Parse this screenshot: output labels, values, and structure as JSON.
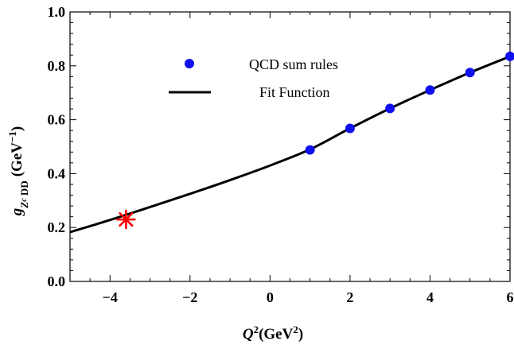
{
  "chart_data": {
    "type": "scatter",
    "xlabel": {
      "base": "Q",
      "sup": "2",
      "unit_open": "(GeV",
      "unit_sup": "2",
      "unit_close": ")"
    },
    "ylabel": {
      "base": "g",
      "sub1": "Z",
      "sub1_sub": "c",
      "sub2": " DD",
      "unit_open": "(GeV",
      "unit_sup": "−1",
      "unit_close": ")"
    },
    "xlim": [
      -5,
      6
    ],
    "ylim": [
      0.0,
      1.0
    ],
    "x_ticks": [
      {
        "value": -4,
        "label": "−4"
      },
      {
        "value": -2,
        "label": "−2"
      },
      {
        "value": 0,
        "label": "0"
      },
      {
        "value": 2,
        "label": "2"
      },
      {
        "value": 4,
        "label": "4"
      },
      {
        "value": 6,
        "label": "6"
      }
    ],
    "y_ticks": [
      {
        "value": 0.0,
        "label": "0.0"
      },
      {
        "value": 0.2,
        "label": "0.2"
      },
      {
        "value": 0.4,
        "label": "0.4"
      },
      {
        "value": 0.6,
        "label": "0.6"
      },
      {
        "value": 0.8,
        "label": "0.8"
      },
      {
        "value": 1.0,
        "label": "1.0"
      }
    ],
    "grid": false,
    "legend_position": "top-center",
    "series": [
      {
        "name": "QCD sum rules",
        "kind": "scatter",
        "color": "#1010ee",
        "x": [
          1,
          2,
          3,
          4,
          5,
          6
        ],
        "y": [
          0.488,
          0.568,
          0.642,
          0.71,
          0.775,
          0.835
        ]
      },
      {
        "name": "Fit Function",
        "kind": "line",
        "color": "#000000",
        "x": [
          -5,
          -4,
          -3,
          -2,
          -1,
          0,
          1,
          2,
          3,
          4,
          5,
          6
        ],
        "y": [
          0.183,
          0.228,
          0.276,
          0.325,
          0.376,
          0.43,
          0.49,
          0.568,
          0.642,
          0.71,
          0.775,
          0.835
        ]
      }
    ],
    "marker": {
      "kind": "asterisk",
      "color": "#ff0000",
      "x": -3.6,
      "y": 0.23
    }
  }
}
